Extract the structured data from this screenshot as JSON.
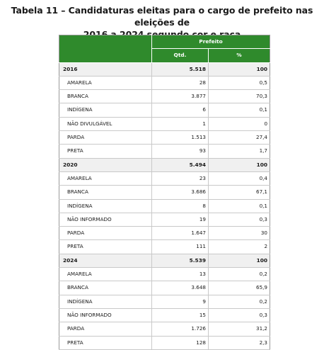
{
  "title": {
    "line1": "Tabela 11 – Candidaturas eleitas para o cargo de prefeito nas eleições de",
    "line2": "2016 a 2024 segundo cor e raça"
  },
  "table": {
    "group_header": "Prefeito",
    "col_qtd": "Qtd.",
    "col_pct": "%",
    "years": [
      {
        "year": "2016",
        "qtd": "5.518",
        "pct": "100",
        "rows": [
          {
            "label": "AMARELA",
            "qtd": "28",
            "pct": "0,5"
          },
          {
            "label": "BRANCA",
            "qtd": "3.877",
            "pct": "70,3"
          },
          {
            "label": "INDÍGENA",
            "qtd": "6",
            "pct": "0,1"
          },
          {
            "label": "NÃO DIVULGÁVEL",
            "qtd": "1",
            "pct": "0"
          },
          {
            "label": "PARDA",
            "qtd": "1.513",
            "pct": "27,4"
          },
          {
            "label": "PRETA",
            "qtd": "93",
            "pct": "1,7"
          }
        ]
      },
      {
        "year": "2020",
        "qtd": "5.494",
        "pct": "100",
        "rows": [
          {
            "label": "AMARELA",
            "qtd": "23",
            "pct": "0,4"
          },
          {
            "label": "BRANCA",
            "qtd": "3.686",
            "pct": "67,1"
          },
          {
            "label": "INDÍGENA",
            "qtd": "8",
            "pct": "0,1"
          },
          {
            "label": "NÃO INFORMADO",
            "qtd": "19",
            "pct": "0,3"
          },
          {
            "label": "PARDA",
            "qtd": "1.647",
            "pct": "30"
          },
          {
            "label": "PRETA",
            "qtd": "111",
            "pct": "2"
          }
        ]
      },
      {
        "year": "2024",
        "qtd": "5.539",
        "pct": "100",
        "rows": [
          {
            "label": "AMARELA",
            "qtd": "13",
            "pct": "0,2"
          },
          {
            "label": "BRANCA",
            "qtd": "3.648",
            "pct": "65,9"
          },
          {
            "label": "INDÍGENA",
            "qtd": "9",
            "pct": "0,2"
          },
          {
            "label": "NÃO INFORMADO",
            "qtd": "15",
            "pct": "0,3"
          },
          {
            "label": "PARDA",
            "qtd": "1.726",
            "pct": "31,2"
          },
          {
            "label": "PRETA",
            "qtd": "128",
            "pct": "2,3"
          }
        ]
      }
    ]
  },
  "colors": {
    "header_green": "#2f8a2c",
    "header_text": "#ffffff",
    "year_row_bg": "#f0f0f0"
  }
}
